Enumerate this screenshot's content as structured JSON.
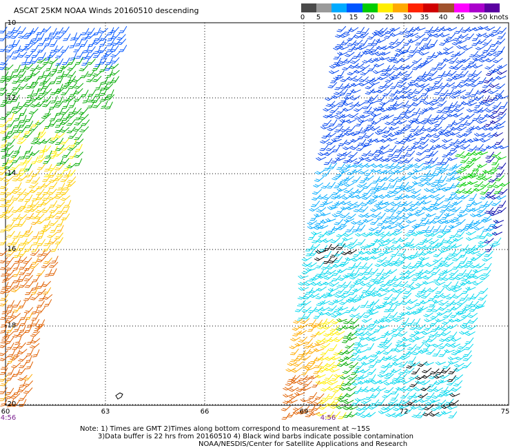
{
  "title": "ASCAT 25KM NOAA Winds 20160510 descending",
  "legend": {
    "labels": [
      "0",
      "5",
      "10",
      "15",
      "20",
      "25",
      "30",
      "35",
      "40",
      "45",
      ">50 knots"
    ],
    "colors": [
      "#4a4a4a",
      "#9a9a9a",
      "#00aaff",
      "#0055ff",
      "#00cc00",
      "#ffee00",
      "#ffaa00",
      "#ff2200",
      "#d00000",
      "#a0522d",
      "#ff00ff",
      "#aa00cc",
      "#5a00a0"
    ]
  },
  "map": {
    "lat_labels": [
      "-10",
      "-12",
      "-14",
      "-16",
      "-18",
      "-20"
    ],
    "lon_labels": [
      "60",
      "63",
      "66",
      "69",
      "72",
      "75"
    ],
    "time_labels": [
      "4:56",
      "4:56"
    ],
    "island_label": ""
  },
  "notes": {
    "line1": "Note: 1) Times are GMT 2)Times along bottom correspond to measurement at ~15S",
    "line2": "3)Data buffer is 22 hrs from 20160510 4) Black wind barbs indicate possible contamination",
    "line3": "NOAA/NESDIS/Center for Satellite Applications and Research"
  }
}
